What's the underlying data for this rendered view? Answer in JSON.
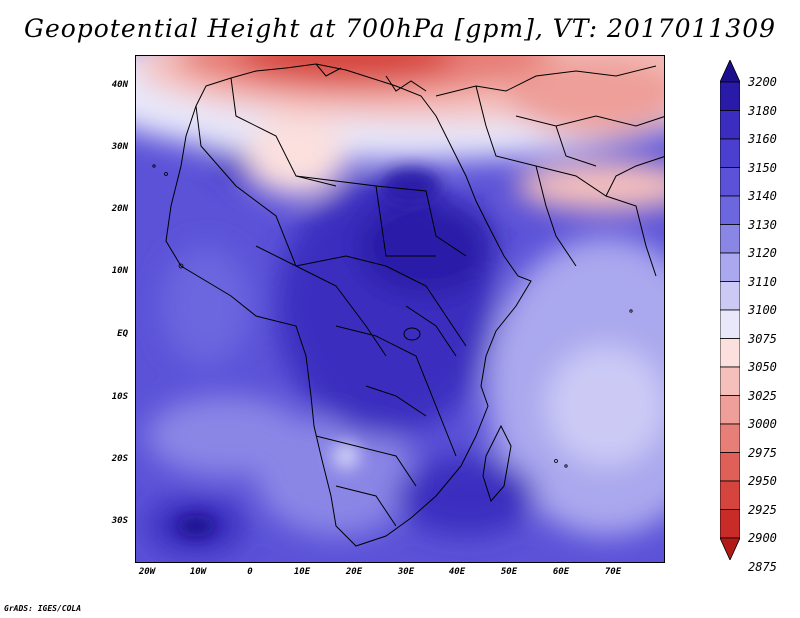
{
  "title": "Geopotential Height at 700hPa [gpm], VT: 2017011309",
  "credit": "GrADS: IGES/COLA",
  "axes": {
    "lat_labels": [
      "40N",
      "30N",
      "20N",
      "10N",
      "EQ",
      "10S",
      "20S",
      "30S"
    ],
    "lon_labels": [
      "20W",
      "10W",
      "0",
      "10E",
      "20E",
      "30E",
      "40E",
      "50E",
      "60E",
      "70E"
    ]
  },
  "colorbar": {
    "levels": [
      "3200",
      "3180",
      "3160",
      "3150",
      "3140",
      "3130",
      "3120",
      "3110",
      "3100",
      "3075",
      "3050",
      "3025",
      "3000",
      "2975",
      "2950",
      "2925",
      "2900",
      "2875"
    ],
    "colors": [
      "#1c0e8c",
      "#2a1aa8",
      "#3a2dbf",
      "#4a3fcf",
      "#5b52d8",
      "#6c66df",
      "#8a86e6",
      "#aaa8ee",
      "#cccaf5",
      "#e8e8fa",
      "#fbe0de",
      "#f5c0bc",
      "#ee9f99",
      "#e77e77",
      "#df5f59",
      "#d6443e",
      "#c92c28",
      "#b11a17"
    ]
  },
  "chart_data": {
    "type": "heatmap",
    "variable": "Geopotential Height at 700hPa",
    "units": "gpm",
    "valid_time": "2017011309",
    "lon_range": [
      -22,
      80
    ],
    "lat_range": [
      -37,
      45
    ],
    "levels": [
      2875,
      2900,
      2925,
      2950,
      2975,
      3000,
      3025,
      3050,
      3075,
      3100,
      3110,
      3120,
      3130,
      3140,
      3150,
      3160,
      3180,
      3200
    ]
  }
}
